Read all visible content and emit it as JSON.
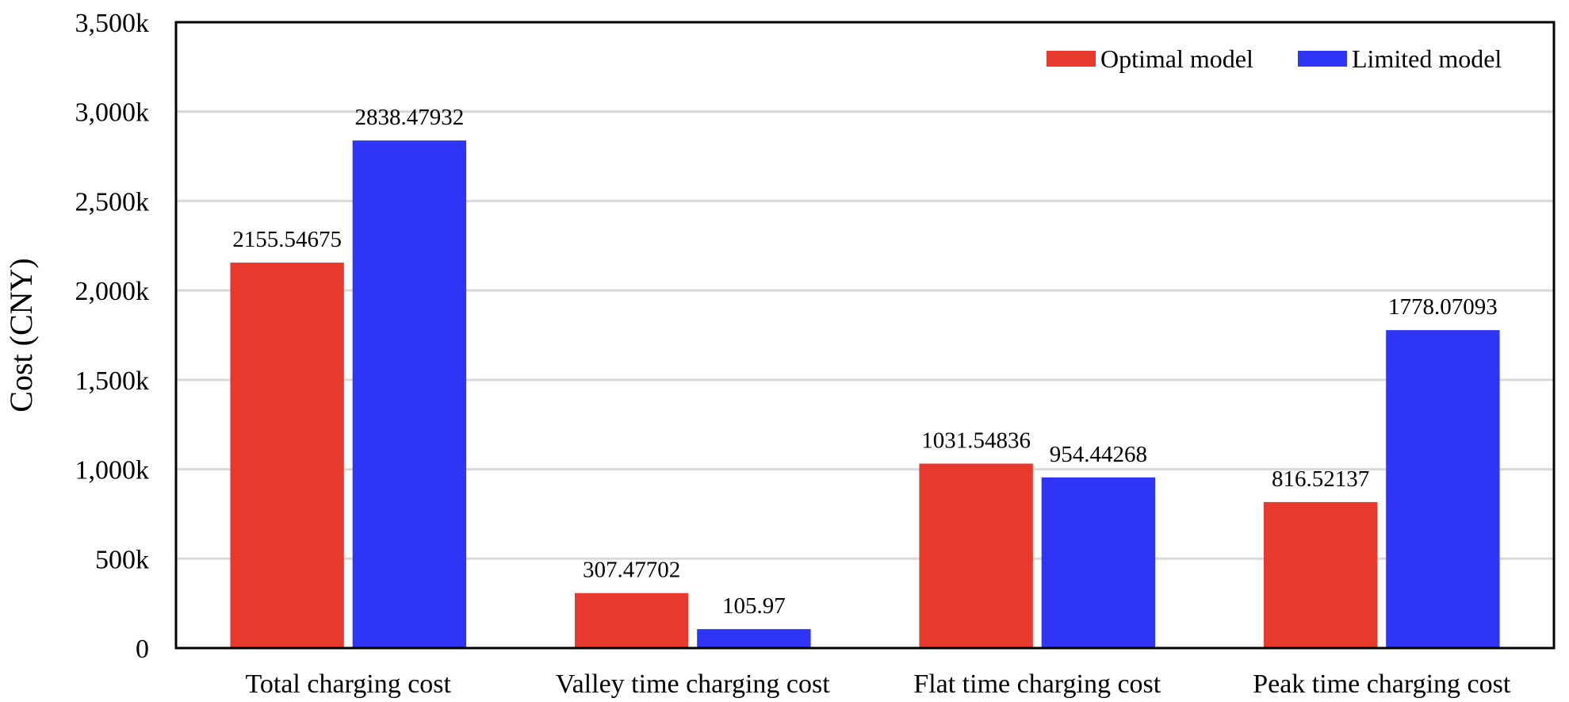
{
  "chart_data": {
    "type": "bar",
    "title": "",
    "xlabel": "",
    "ylabel": "Cost (CNY)",
    "ylim": [
      0,
      3500
    ],
    "yticks": [
      {
        "value": 0,
        "label": "0"
      },
      {
        "value": 500,
        "label": "500k"
      },
      {
        "value": 1000,
        "label": "1,000k"
      },
      {
        "value": 1500,
        "label": "1,500k"
      },
      {
        "value": 2000,
        "label": "2,000k"
      },
      {
        "value": 2500,
        "label": "2,500k"
      },
      {
        "value": 3000,
        "label": "3,000k"
      },
      {
        "value": 3500,
        "label": "3,500k"
      }
    ],
    "grid": true,
    "legend_position": "top-right",
    "categories": [
      "Total charging cost",
      "Valley time charging cost",
      "Flat time charging cost",
      "Peak time charging cost"
    ],
    "series": [
      {
        "name": "Optimal model",
        "color": "#e8392f",
        "values": [
          2155.54675,
          307.47702,
          1031.54836,
          816.52137
        ],
        "labels": [
          "2155.54675",
          "307.47702",
          "1031.54836",
          "816.52137"
        ]
      },
      {
        "name": "Limited model",
        "color": "#2e35f5",
        "values": [
          2838.47932,
          105.97,
          954.44268,
          1778.07093
        ],
        "labels": [
          "2838.47932",
          "105.97",
          "954.44268",
          "1778.07093"
        ]
      }
    ]
  }
}
